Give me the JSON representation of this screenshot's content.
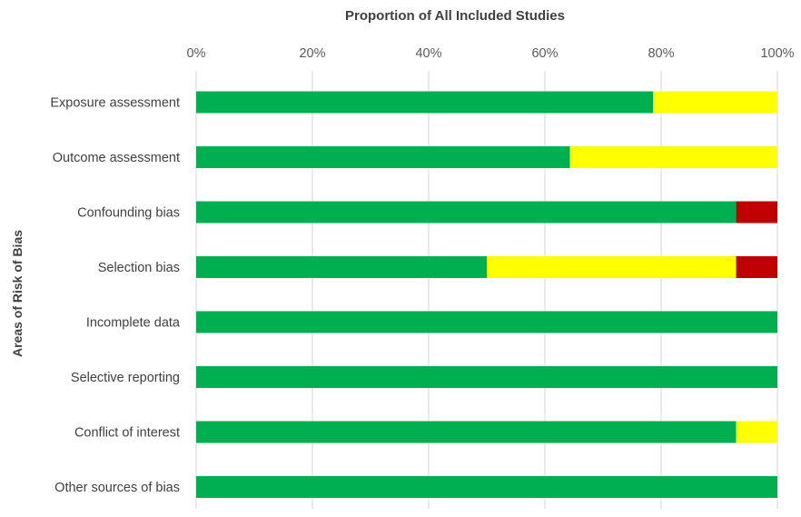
{
  "chart_data": {
    "type": "bar",
    "orientation": "horizontal",
    "stacked": true,
    "title": "Proportion of All Included Studies",
    "ylabel": "Areas of Risk of Bias",
    "xlabel": "",
    "xlim": [
      0,
      100
    ],
    "x_ticks": [
      "0%",
      "20%",
      "40%",
      "60%",
      "80%",
      "100%"
    ],
    "x_tick_values": [
      0,
      20,
      40,
      60,
      80,
      100
    ],
    "axis_position": "top",
    "grid": true,
    "legend": "none",
    "categories": [
      "Exposure assessment",
      "Outcome assessment",
      "Confounding bias",
      "Selection bias",
      "Incomplete data",
      "Selective reporting",
      "Conflict of interest",
      "Other sources of bias"
    ],
    "series": [
      {
        "color": "#00b050",
        "values": [
          78.6,
          64.3,
          92.9,
          50.0,
          100,
          100,
          92.9,
          100
        ]
      },
      {
        "color": "#ffff00",
        "values": [
          21.4,
          35.7,
          0,
          42.9,
          0,
          0,
          7.1,
          0
        ]
      },
      {
        "color": "#c00000",
        "values": [
          0,
          0,
          7.1,
          7.1,
          0,
          0,
          0,
          0
        ]
      }
    ]
  }
}
